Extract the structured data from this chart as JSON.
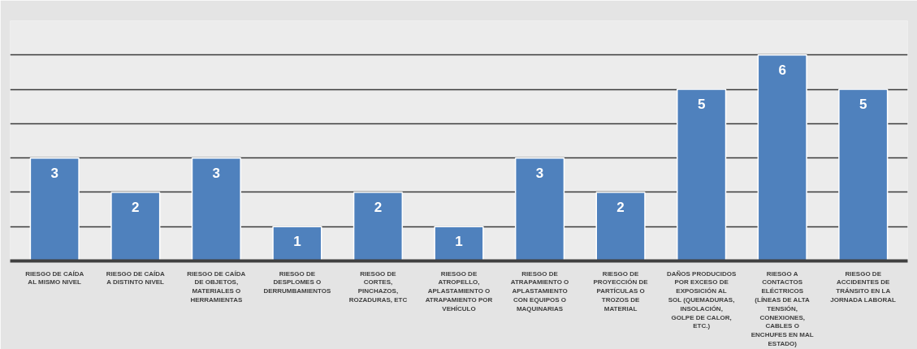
{
  "chart_data": {
    "type": "bar",
    "categories": [
      "RIESGO DE CAÍDA AL MISMO NIVEL",
      "RIESGO DE CAÍDA A DISTINTO NIVEL",
      "RIESGO DE CAÍDA DE OBJETOS, MATERIALES O HERRAMIENTAS",
      "RIESGO DE DESPLOMES O DERRUMBAMIENTOS",
      "RIESGO DE CORTES, PINCHAZOS, ROZADURAS, ETC",
      "RIESGO DE ATROPELLO, APLASTAMIENTO O ATRAPAMIENTO POR VEHÍCULO",
      "RIESGO DE ATRAPAMIENTO O APLASTAMIENTO CON EQUIPOS O MAQUINARIAS",
      "RIESGO DE PROYECCIÓN DE PARTÍCULAS O TROZOS DE MATERIAL",
      "DAÑOS PRODUCIDOS POR EXCESO DE EXPOSICIÓN AL SOL (QUEMADURAS, INSOLACIÓN, GOLPE DE CALOR, ETC.)",
      "RIESGO A CONTACTOS ELÉCTRICOS (LÍNEAS DE ALTA TENSIÓN, CONEXIONES, CABLES O ENCHUFES EN MAL ESTADO)",
      "RIESGO DE ACCIDENTES DE TRÁNSITO EN LA JORNADA LABORAL"
    ],
    "values": [
      3,
      2,
      3,
      1,
      2,
      1,
      3,
      2,
      5,
      6,
      5
    ],
    "color": "#4f81bd",
    "data_labels": true,
    "ylim": [
      0,
      7
    ],
    "yticks": [
      {
        "value": 0,
        "label": null
      },
      {
        "value": 1,
        "label": null
      },
      {
        "value": 2,
        "label": null
      },
      {
        "value": 3,
        "label": null
      },
      {
        "value": 4,
        "label": null
      },
      {
        "value": 5,
        "label": null
      },
      {
        "value": 6,
        "label": null
      },
      {
        "value": 7,
        "label": null
      }
    ],
    "tick_labels": "x",
    "grid": "y"
  }
}
